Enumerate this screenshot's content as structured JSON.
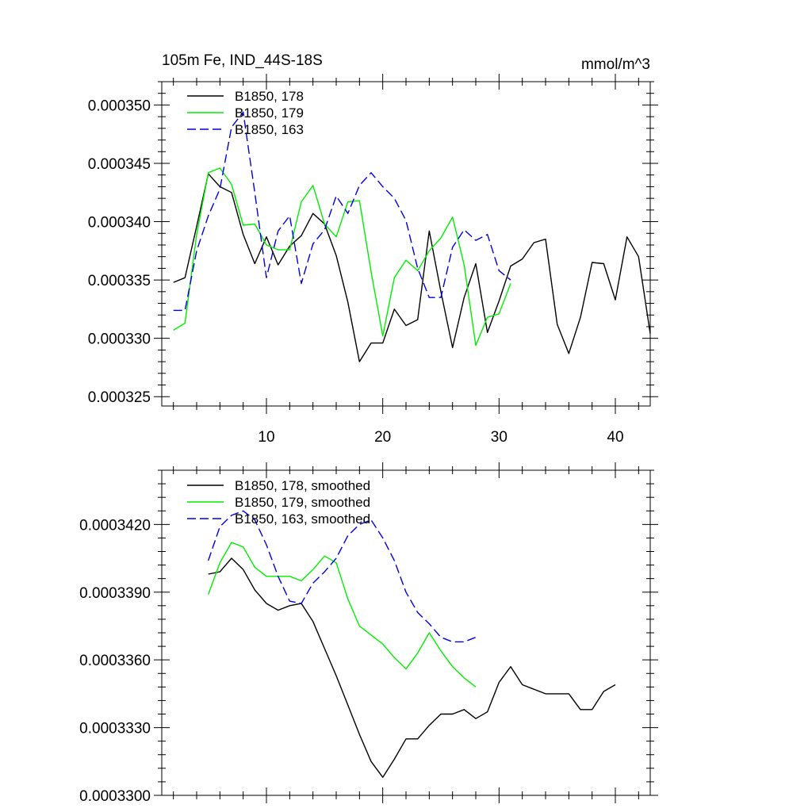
{
  "chart_data": [
    {
      "type": "line",
      "title": "105m Fe, IND_44S-18S",
      "units": "mmol/m^3",
      "xlim": [
        1,
        43
      ],
      "ylim": [
        0.0003242,
        0.000352
      ],
      "xticks": [
        10,
        20,
        30,
        40
      ],
      "xtick_labels": [
        "10",
        "20",
        "30",
        "40"
      ],
      "yticks": [
        0.000325,
        0.00033,
        0.000335,
        0.00034,
        0.000345,
        0.00035
      ],
      "ytick_labels": [
        "0.000325",
        "0.000330",
        "0.000335",
        "0.000340",
        "0.000345",
        "0.000350"
      ],
      "series": [
        {
          "name": "B1850, 178",
          "color": "#000000",
          "dash": "solid",
          "x": [
            2,
            3,
            4,
            5,
            6,
            7,
            8,
            9,
            10,
            11,
            12,
            13,
            14,
            15,
            16,
            17,
            18,
            19,
            20,
            21,
            22,
            23,
            24,
            25,
            26,
            27,
            28,
            29,
            30,
            31,
            32,
            33,
            34,
            35,
            36,
            37,
            38,
            39,
            40,
            41,
            42,
            43
          ],
          "values": [
            0.0003348,
            0.0003352,
            0.0003396,
            0.0003441,
            0.000343,
            0.0003425,
            0.0003389,
            0.0003364,
            0.0003387,
            0.0003363,
            0.0003379,
            0.0003388,
            0.0003407,
            0.0003398,
            0.0003371,
            0.0003331,
            0.000328,
            0.0003296,
            0.0003296,
            0.0003325,
            0.0003311,
            0.0003316,
            0.0003392,
            0.000334,
            0.0003292,
            0.0003335,
            0.0003364,
            0.0003305,
            0.0003332,
            0.0003362,
            0.0003368,
            0.0003382,
            0.0003385,
            0.0003312,
            0.0003287,
            0.0003318,
            0.0003365,
            0.0003364,
            0.0003333,
            0.0003387,
            0.000337,
            0.0003304
          ]
        },
        {
          "name": "B1850, 179",
          "color": "#00ee00",
          "dash": "solid",
          "x": [
            2,
            3,
            4,
            5,
            6,
            7,
            8,
            9,
            10,
            11,
            12,
            13,
            14,
            15,
            16,
            17,
            18,
            19,
            20,
            21,
            22,
            23,
            24,
            25,
            26,
            27,
            28,
            29,
            30,
            31
          ],
          "values": [
            0.0003307,
            0.0003313,
            0.0003389,
            0.0003442,
            0.0003446,
            0.0003432,
            0.0003397,
            0.0003398,
            0.000338,
            0.0003376,
            0.0003376,
            0.0003417,
            0.0003431,
            0.0003398,
            0.0003387,
            0.0003417,
            0.0003418,
            0.0003357,
            0.0003302,
            0.0003352,
            0.0003367,
            0.0003358,
            0.0003375,
            0.0003386,
            0.0003404,
            0.0003363,
            0.0003294,
            0.0003318,
            0.0003321,
            0.0003347
          ]
        },
        {
          "name": "B1850, 163",
          "color": "#0000dd",
          "dash": "dashed",
          "x": [
            2,
            3,
            4,
            5,
            6,
            7,
            8,
            9,
            10,
            11,
            12,
            13,
            14,
            15,
            16,
            17,
            18,
            19,
            20,
            21,
            22,
            23,
            24,
            25,
            26,
            27,
            28,
            29,
            30,
            31
          ],
          "values": [
            0.0003324,
            0.0003324,
            0.0003375,
            0.0003405,
            0.0003428,
            0.0003481,
            0.0003494,
            0.0003425,
            0.0003352,
            0.0003392,
            0.0003405,
            0.0003347,
            0.0003381,
            0.0003393,
            0.0003422,
            0.0003407,
            0.0003431,
            0.0003442,
            0.000343,
            0.000342,
            0.0003401,
            0.000336,
            0.0003335,
            0.0003335,
            0.0003378,
            0.0003393,
            0.0003384,
            0.0003389,
            0.0003358,
            0.000335
          ]
        }
      ]
    },
    {
      "type": "line",
      "xlim": [
        1,
        43
      ],
      "ylim": [
        0.00033,
        0.0003444
      ],
      "xticks": [
        10,
        20,
        30,
        40
      ],
      "xtick_labels": [],
      "yticks": [
        0.00033,
        0.000333,
        0.000336,
        0.000339,
        0.000342
      ],
      "ytick_labels": [
        "0.0003300",
        "0.0003330",
        "0.0003360",
        "0.0003390",
        "0.0003420"
      ],
      "series": [
        {
          "name": "B1850, 178, smoothed",
          "color": "#000000",
          "dash": "solid",
          "x": [
            5,
            6,
            7,
            8,
            9,
            10,
            11,
            12,
            13,
            14,
            15,
            16,
            17,
            18,
            19,
            20,
            21,
            22,
            23,
            24,
            25,
            26,
            27,
            28,
            29,
            30,
            31,
            32,
            33,
            34,
            35,
            36,
            37,
            38,
            39,
            40
          ],
          "values": [
            0.0003398,
            0.0003399,
            0.0003405,
            0.00034,
            0.0003391,
            0.0003385,
            0.0003382,
            0.0003384,
            0.0003385,
            0.0003377,
            0.0003365,
            0.0003353,
            0.000334,
            0.0003327,
            0.0003315,
            0.0003308,
            0.0003316,
            0.0003325,
            0.0003325,
            0.0003331,
            0.0003336,
            0.0003336,
            0.0003338,
            0.0003334,
            0.0003337,
            0.000335,
            0.0003357,
            0.0003349,
            0.0003347,
            0.0003345,
            0.0003345,
            0.0003345,
            0.0003338,
            0.0003338,
            0.0003346,
            0.0003349
          ]
        },
        {
          "name": "B1850, 179, smoothed",
          "color": "#00ee00",
          "dash": "solid",
          "x": [
            5,
            6,
            7,
            8,
            9,
            10,
            11,
            12,
            13,
            14,
            15,
            16,
            17,
            18,
            19,
            20,
            21,
            22,
            23,
            24,
            25,
            26,
            27,
            28
          ],
          "values": [
            0.0003389,
            0.0003403,
            0.0003412,
            0.000341,
            0.0003401,
            0.0003397,
            0.0003397,
            0.0003397,
            0.0003395,
            0.00034,
            0.0003406,
            0.0003403,
            0.0003387,
            0.0003375,
            0.0003371,
            0.0003367,
            0.0003361,
            0.0003356,
            0.0003363,
            0.0003372,
            0.0003364,
            0.0003357,
            0.0003352,
            0.0003348
          ]
        },
        {
          "name": "B1850, 163, smoothed",
          "color": "#0000dd",
          "dash": "dashed",
          "x": [
            5,
            6,
            7,
            8,
            9,
            10,
            11,
            12,
            13,
            14,
            15,
            16,
            17,
            18,
            19,
            20,
            21,
            22,
            23,
            24,
            25,
            26,
            27,
            28
          ],
          "values": [
            0.0003404,
            0.0003419,
            0.0003424,
            0.0003426,
            0.0003422,
            0.0003411,
            0.0003397,
            0.0003386,
            0.0003385,
            0.0003394,
            0.0003399,
            0.0003405,
            0.0003415,
            0.000342,
            0.0003422,
            0.0003414,
            0.0003404,
            0.000339,
            0.0003381,
            0.0003376,
            0.000337,
            0.0003368,
            0.0003368,
            0.000337
          ]
        }
      ]
    }
  ]
}
